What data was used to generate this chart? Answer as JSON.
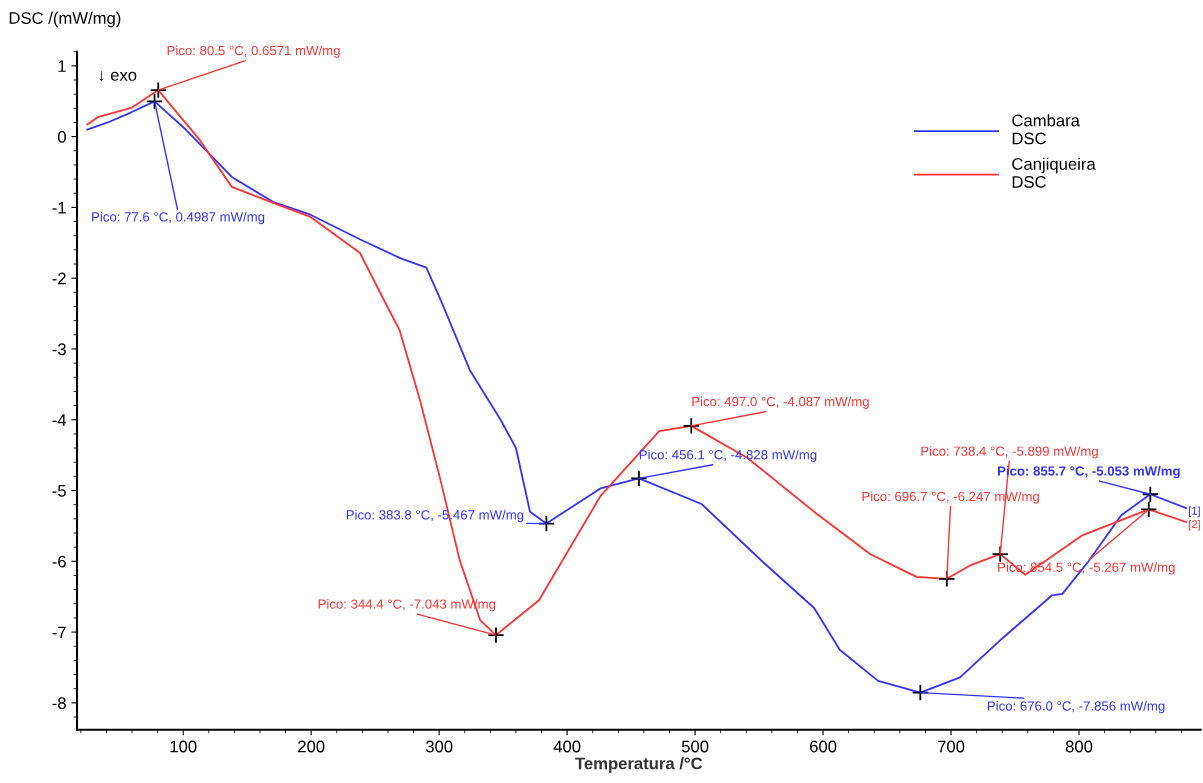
{
  "chart_data": {
    "type": "line",
    "xlabel": "Temperatura /°C",
    "ylabel": "DSC /(mW/mg)",
    "xlim": [
      17,
      895
    ],
    "ylim": [
      -8.38,
      1.2
    ],
    "xticks": [
      100,
      200,
      300,
      400,
      500,
      600,
      700,
      800
    ],
    "yticks": [
      -8,
      -7,
      -6,
      -5,
      -4,
      -3,
      -2,
      -1,
      0,
      1
    ],
    "grid": false,
    "legend": "top right",
    "marker": "none",
    "line_style": "solid",
    "series": [
      {
        "name": "Cambara\nDSC",
        "color": "#3333ff",
        "x": [
          25,
          41,
          59,
          77.6,
          102,
          138,
          170,
          199,
          238,
          270,
          290,
          301,
          324,
          348,
          360,
          371,
          383.8,
          426,
          456.1,
          505,
          553,
          593,
          613,
          643,
          676.0,
          707,
          740,
          779,
          787,
          807,
          833,
          855.7,
          891
        ],
        "values": [
          0.1,
          0.2,
          0.34,
          0.4987,
          0.1,
          -0.57,
          -0.92,
          -1.1,
          -1.45,
          -1.72,
          -1.85,
          -2.3,
          -3.3,
          -4.0,
          -4.4,
          -5.3,
          -5.467,
          -4.97,
          -4.828,
          -5.19,
          -6.01,
          -6.66,
          -7.25,
          -7.69,
          -7.856,
          -7.64,
          -7.09,
          -6.48,
          -6.46,
          -6.01,
          -5.35,
          -5.053,
          -5.3
        ]
      },
      {
        "name": "Canjiqueira\nDSC",
        "color": "#ff3333",
        "x": [
          25,
          34,
          60,
          80.5,
          113,
          138,
          178,
          199,
          238,
          256,
          269,
          285,
          301,
          316,
          332,
          344.4,
          378,
          426,
          472,
          497.0,
          541,
          593,
          637,
          673,
          696.7,
          716,
          738.4,
          758,
          803,
          854.5,
          891
        ],
        "values": [
          0.17,
          0.28,
          0.41,
          0.6571,
          -0.05,
          -0.71,
          -0.99,
          -1.13,
          -1.64,
          -2.28,
          -2.73,
          -3.72,
          -4.85,
          -5.98,
          -6.83,
          -7.043,
          -6.55,
          -5.08,
          -4.16,
          -4.087,
          -4.54,
          -5.3,
          -5.9,
          -6.22,
          -6.247,
          -6.05,
          -5.899,
          -6.19,
          -5.63,
          -5.267,
          -5.49
        ]
      }
    ],
    "annotations": [
      "↓ exo",
      {
        "text": "Pico: 80.5 °C, 0.6571 mW/mg",
        "x": 80.5,
        "y": 0.6571
      },
      {
        "text": "Pico: 77.6 °C, 0.4987 mW/mg",
        "x": 77.6,
        "y": 0.4987
      },
      {
        "text": "Pico: 383.8 °C, -5.467 mW/mg",
        "x": 383.8,
        "y": -5.467
      },
      {
        "text": "Pico: 344.4 °C, -7.043 mW/mg",
        "x": 344.4,
        "y": -7.043
      },
      {
        "text": "Pico: 497.0 °C, -4.087 mW/mg",
        "x": 497.0,
        "y": -4.087
      },
      {
        "text": "Pico: 456.1 °C, -4.828 mW/mg",
        "x": 456.1,
        "y": -4.828
      },
      {
        "text": "Pico: 738.4 °C, -5.899 mW/mg",
        "x": 738.4,
        "y": -5.899
      },
      {
        "text": "Pico: 696.7 °C, -6.247 mW/mg",
        "x": 696.7,
        "y": -6.247
      },
      {
        "text": "Pico: 855.7 °C, -5.053 mW/mg",
        "x": 855.7,
        "y": -5.053
      },
      {
        "text": "Pico: 854.5 °C, -5.267 mW/mg",
        "x": 854.5,
        "y": -5.267
      },
      {
        "text": "Pico: 676.0 °C, -7.856 mW/mg",
        "x": 676.0,
        "y": -7.856
      },
      {
        "text": "[1]",
        "x": 891,
        "y": -5.3
      },
      {
        "text": "[2]",
        "x": 891,
        "y": -5.49
      }
    ]
  }
}
